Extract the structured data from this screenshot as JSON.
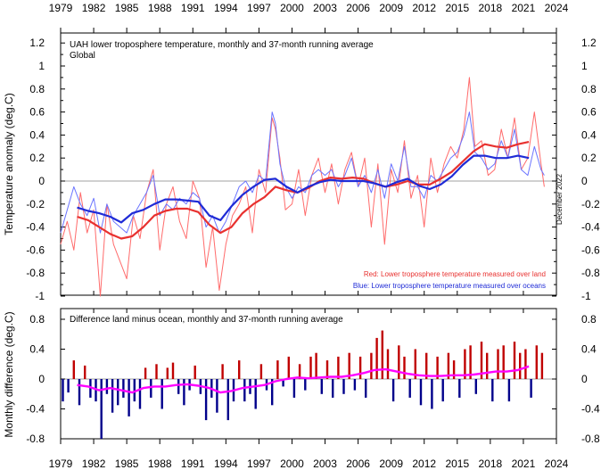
{
  "colors": {
    "land": "#e8312f",
    "ocean": "#1f2bd6",
    "land_raw": "#ff6b6b",
    "ocean_raw": "#6b74ff",
    "diff_pos": "#c00000",
    "diff_neg": "#00008b",
    "diff_avg": "#ff00ff",
    "zero_line": "#808080"
  },
  "chart_data": [
    {
      "type": "line",
      "title": "UAH lower troposphere temperature, monthly and 37-month running average",
      "subtitle": "Global",
      "ylabel": "Temperature anomaly (deg.C)",
      "xlabel": "",
      "xlim": [
        1979,
        2024
      ],
      "ylim": [
        -1.0,
        1.3
      ],
      "x_ticks": [
        "1979",
        "1982",
        "1985",
        "1988",
        "1991",
        "1994",
        "1997",
        "2000",
        "2003",
        "2006",
        "2009",
        "2012",
        "2015",
        "2018",
        "2021",
        "2024"
      ],
      "y_ticks": [
        "1.2",
        "1",
        "0.8",
        "0.6",
        "0.4",
        "0.2",
        "0",
        "-0.2",
        "-0.4",
        "-0.6",
        "-0.8",
        "-1"
      ],
      "right_y_ticks": [
        "1.2",
        "1",
        "0.8",
        "0.6",
        "0.4",
        "0.2",
        "0",
        "-0.2",
        "-0.4",
        "-0.6",
        "-0.8",
        "-1"
      ],
      "annotation": "December 2022",
      "legend": [
        {
          "label": "Red: Lower troposphere temperature measured over land",
          "color": "#e8312f"
        },
        {
          "label": "Blue: Lower troposphere temperature measured over oceans",
          "color": "#1f2bd6"
        }
      ],
      "series": [
        {
          "name": "Land 37-month running average",
          "x": [
            1980.5,
            1981.5,
            1982.5,
            1983.5,
            1984.5,
            1985.5,
            1986.5,
            1987.5,
            1988.5,
            1989.5,
            1990.5,
            1991.5,
            1992.5,
            1993.5,
            1994.5,
            1995.5,
            1996.5,
            1997.5,
            1998.5,
            1999.5,
            2000.5,
            2001.5,
            2002.5,
            2003.5,
            2004.5,
            2005.5,
            2006.5,
            2007.5,
            2008.5,
            2009.5,
            2010.5,
            2011.5,
            2012.5,
            2013.5,
            2014.5,
            2015.5,
            2016.5,
            2017.5,
            2018.5,
            2019.5,
            2020.5,
            2021.5
          ],
          "values": [
            -0.31,
            -0.34,
            -0.4,
            -0.46,
            -0.5,
            -0.48,
            -0.4,
            -0.3,
            -0.26,
            -0.24,
            -0.24,
            -0.27,
            -0.38,
            -0.45,
            -0.4,
            -0.28,
            -0.2,
            -0.14,
            -0.05,
            -0.08,
            -0.1,
            -0.06,
            0.0,
            0.03,
            0.02,
            0.03,
            0.02,
            -0.02,
            -0.05,
            -0.03,
            0.0,
            -0.03,
            -0.03,
            0.02,
            0.08,
            0.17,
            0.26,
            0.32,
            0.3,
            0.29,
            0.32,
            0.34
          ]
        },
        {
          "name": "Ocean 37-month running average",
          "x": [
            1980.5,
            1981.5,
            1982.5,
            1983.5,
            1984.5,
            1985.5,
            1986.5,
            1987.5,
            1988.5,
            1989.5,
            1990.5,
            1991.5,
            1992.5,
            1993.5,
            1994.5,
            1995.5,
            1996.5,
            1997.5,
            1998.5,
            1999.5,
            2000.5,
            2001.5,
            2002.5,
            2003.5,
            2004.5,
            2005.5,
            2006.5,
            2007.5,
            2008.5,
            2009.5,
            2010.5,
            2011.5,
            2012.5,
            2013.5,
            2014.5,
            2015.5,
            2016.5,
            2017.5,
            2018.5,
            2019.5,
            2020.5,
            2021.5
          ],
          "values": [
            -0.23,
            -0.26,
            -0.28,
            -0.31,
            -0.36,
            -0.28,
            -0.25,
            -0.2,
            -0.16,
            -0.16,
            -0.17,
            -0.18,
            -0.3,
            -0.34,
            -0.22,
            -0.12,
            -0.05,
            0.01,
            0.02,
            -0.05,
            -0.1,
            -0.05,
            -0.01,
            0.01,
            0.0,
            0.0,
            0.0,
            -0.02,
            -0.05,
            -0.01,
            0.02,
            -0.04,
            -0.07,
            -0.03,
            0.04,
            0.14,
            0.22,
            0.22,
            0.2,
            0.2,
            0.22,
            0.2
          ]
        },
        {
          "name": "Land monthly",
          "x": [
            1979.0,
            1979.6,
            1980.2,
            1980.8,
            1981.4,
            1982.0,
            1982.6,
            1983.2,
            1983.8,
            1984.4,
            1985.0,
            1985.6,
            1986.2,
            1986.8,
            1987.4,
            1988.0,
            1988.6,
            1989.2,
            1989.8,
            1990.4,
            1991.0,
            1991.6,
            1992.2,
            1992.8,
            1993.4,
            1994.0,
            1994.6,
            1995.2,
            1995.8,
            1996.4,
            1997.0,
            1997.6,
            1998.2,
            1998.5,
            1998.9,
            1999.4,
            2000.0,
            2000.6,
            2001.2,
            2001.8,
            2002.4,
            2003.0,
            2003.6,
            2004.2,
            2004.8,
            2005.4,
            2006.0,
            2006.6,
            2007.2,
            2007.8,
            2008.4,
            2009.0,
            2009.6,
            2010.2,
            2010.8,
            2011.4,
            2012.0,
            2012.6,
            2013.2,
            2013.8,
            2014.4,
            2015.0,
            2015.6,
            2016.1,
            2016.6,
            2017.2,
            2017.8,
            2018.4,
            2019.0,
            2019.6,
            2020.2,
            2020.8,
            2021.4,
            2022.0,
            2022.6,
            2022.9
          ],
          "values": [
            -0.55,
            -0.35,
            -0.6,
            -0.1,
            -0.45,
            -0.25,
            -1.0,
            -0.2,
            -0.55,
            -0.7,
            -0.85,
            -0.3,
            -0.5,
            -0.1,
            0.1,
            -0.6,
            -0.2,
            -0.05,
            -0.35,
            -0.5,
            0.0,
            -0.15,
            -0.75,
            -0.4,
            -0.95,
            -0.55,
            -0.3,
            -0.2,
            -0.05,
            -0.45,
            0.1,
            -0.1,
            0.55,
            0.45,
            0.2,
            -0.25,
            -0.2,
            0.1,
            -0.3,
            0.05,
            0.2,
            -0.1,
            0.15,
            -0.2,
            0.1,
            0.25,
            -0.05,
            0.2,
            -0.4,
            0.15,
            -0.55,
            0.1,
            -0.1,
            0.35,
            -0.15,
            0.05,
            -0.4,
            0.2,
            -0.1,
            0.15,
            0.3,
            0.2,
            0.45,
            0.9,
            0.3,
            0.35,
            0.05,
            0.1,
            0.45,
            0.2,
            0.55,
            0.1,
            0.2,
            0.6,
            0.15,
            -0.05
          ]
        },
        {
          "name": "Ocean monthly",
          "x": [
            1979.0,
            1979.6,
            1980.2,
            1980.8,
            1981.4,
            1982.0,
            1982.6,
            1983.2,
            1983.8,
            1984.4,
            1985.0,
            1985.6,
            1986.2,
            1986.8,
            1987.4,
            1988.0,
            1988.6,
            1989.2,
            1989.8,
            1990.4,
            1991.0,
            1991.6,
            1992.2,
            1992.8,
            1993.4,
            1994.0,
            1994.6,
            1995.2,
            1995.8,
            1996.4,
            1997.0,
            1997.6,
            1998.2,
            1998.5,
            1998.9,
            1999.4,
            2000.0,
            2000.6,
            2001.2,
            2001.8,
            2002.4,
            2003.0,
            2003.6,
            2004.2,
            2004.8,
            2005.4,
            2006.0,
            2006.6,
            2007.2,
            2007.8,
            2008.4,
            2009.0,
            2009.6,
            2010.2,
            2010.8,
            2011.4,
            2012.0,
            2012.6,
            2013.2,
            2013.8,
            2014.4,
            2015.0,
            2015.6,
            2016.1,
            2016.6,
            2017.2,
            2017.8,
            2018.4,
            2019.0,
            2019.6,
            2020.2,
            2020.8,
            2021.4,
            2022.0,
            2022.6,
            2022.9
          ],
          "values": [
            -0.45,
            -0.25,
            -0.05,
            -0.2,
            -0.3,
            -0.15,
            -0.45,
            -0.2,
            -0.35,
            -0.4,
            -0.45,
            -0.3,
            -0.2,
            -0.1,
            0.05,
            -0.3,
            -0.2,
            -0.25,
            -0.15,
            -0.2,
            -0.1,
            -0.15,
            -0.4,
            -0.3,
            -0.45,
            -0.35,
            -0.2,
            -0.05,
            0.0,
            -0.1,
            0.05,
            0.0,
            0.6,
            0.5,
            0.15,
            -0.05,
            -0.15,
            -0.05,
            -0.1,
            0.05,
            0.1,
            0.05,
            0.1,
            -0.05,
            0.05,
            0.2,
            -0.05,
            0.05,
            -0.1,
            0.1,
            -0.15,
            0.15,
            0.0,
            0.3,
            -0.05,
            -0.05,
            -0.15,
            0.05,
            0.0,
            0.1,
            0.2,
            0.25,
            0.4,
            0.6,
            0.25,
            0.2,
            0.1,
            0.15,
            0.35,
            0.2,
            0.45,
            0.1,
            0.05,
            0.3,
            0.1,
            0.05
          ]
        }
      ]
    },
    {
      "type": "bar",
      "title": "Difference land minus ocean, monthly and 37-month running average",
      "ylabel": "Monthly difference (deg.C)",
      "xlabel": "",
      "xlim": [
        1979,
        2024
      ],
      "ylim": [
        -0.85,
        0.85
      ],
      "x_ticks": [
        "1979",
        "1982",
        "1985",
        "1988",
        "1991",
        "1994",
        "1997",
        "2000",
        "2003",
        "2006",
        "2009",
        "2012",
        "2015",
        "2018",
        "2021",
        "2024"
      ],
      "y_ticks": [
        "0.8",
        "0.4",
        "0",
        "-0.4",
        "-0.8"
      ],
      "right_y_ticks": [
        "0.8",
        "0.4",
        "0",
        "-0.4",
        "-0.8"
      ],
      "series": [
        {
          "name": "Monthly difference",
          "x": [
            1979.2,
            1979.7,
            1980.2,
            1980.7,
            1981.2,
            1981.7,
            1982.2,
            1982.7,
            1983.2,
            1983.7,
            1984.2,
            1984.7,
            1985.2,
            1985.7,
            1986.2,
            1986.7,
            1987.2,
            1987.7,
            1988.2,
            1988.7,
            1989.2,
            1989.7,
            1990.2,
            1990.7,
            1991.2,
            1991.7,
            1992.2,
            1992.7,
            1993.2,
            1993.7,
            1994.2,
            1994.7,
            1995.2,
            1995.7,
            1996.2,
            1996.7,
            1997.2,
            1997.7,
            1998.2,
            1998.7,
            1999.2,
            1999.7,
            2000.2,
            2000.7,
            2001.2,
            2001.7,
            2002.2,
            2002.7,
            2003.2,
            2003.7,
            2004.2,
            2004.7,
            2005.2,
            2005.7,
            2006.2,
            2006.7,
            2007.2,
            2007.7,
            2008.2,
            2008.7,
            2009.2,
            2009.7,
            2010.2,
            2010.7,
            2011.2,
            2011.7,
            2012.2,
            2012.7,
            2013.2,
            2013.7,
            2014.2,
            2014.7,
            2015.2,
            2015.7,
            2016.2,
            2016.7,
            2017.2,
            2017.7,
            2018.2,
            2018.7,
            2019.2,
            2019.7,
            2020.2,
            2020.7,
            2021.2,
            2021.7,
            2022.2,
            2022.7
          ],
          "values": [
            -0.3,
            -0.18,
            0.25,
            -0.35,
            0.18,
            -0.25,
            -0.3,
            -0.8,
            -0.2,
            -0.45,
            -0.35,
            -0.25,
            -0.5,
            -0.3,
            -0.4,
            0.15,
            -0.25,
            0.2,
            -0.4,
            0.15,
            0.22,
            -0.2,
            -0.35,
            -0.15,
            0.18,
            -0.2,
            -0.55,
            -0.25,
            -0.45,
            0.2,
            -0.55,
            -0.3,
            0.25,
            -0.3,
            -0.2,
            -0.4,
            0.2,
            -0.15,
            -0.35,
            0.25,
            -0.1,
            0.3,
            -0.25,
            0.2,
            -0.15,
            0.3,
            0.35,
            -0.2,
            0.25,
            -0.25,
            0.3,
            -0.2,
            0.35,
            -0.15,
            0.3,
            -0.25,
            0.35,
            0.55,
            0.65,
            0.4,
            -0.3,
            0.45,
            0.3,
            -0.25,
            0.4,
            -0.35,
            0.35,
            -0.4,
            0.3,
            -0.3,
            0.35,
            0.25,
            -0.25,
            0.4,
            0.45,
            -0.2,
            0.5,
            0.35,
            -0.3,
            0.4,
            0.45,
            -0.3,
            0.5,
            0.35,
            0.4,
            -0.25,
            0.45,
            0.35
          ]
        },
        {
          "name": "37-month running average",
          "x": [
            1980.5,
            1981.5,
            1982.5,
            1983.5,
            1984.5,
            1985.5,
            1986.5,
            1987.5,
            1988.5,
            1989.5,
            1990.5,
            1991.5,
            1992.5,
            1993.5,
            1994.5,
            1995.5,
            1996.5,
            1997.5,
            1998.5,
            1999.5,
            2000.5,
            2001.5,
            2002.5,
            2003.5,
            2004.5,
            2005.5,
            2006.5,
            2007.5,
            2008.5,
            2009.5,
            2010.5,
            2011.5,
            2012.5,
            2013.5,
            2014.5,
            2015.5,
            2016.5,
            2017.5,
            2018.5,
            2019.5,
            2020.5,
            2021.5
          ],
          "values": [
            -0.08,
            -0.1,
            -0.15,
            -0.12,
            -0.15,
            -0.18,
            -0.12,
            -0.1,
            -0.1,
            -0.08,
            -0.07,
            -0.09,
            -0.12,
            -0.18,
            -0.16,
            -0.12,
            -0.1,
            -0.08,
            -0.03,
            0.0,
            0.02,
            0.01,
            0.02,
            0.03,
            0.03,
            0.05,
            0.08,
            0.12,
            0.13,
            0.1,
            0.07,
            0.05,
            0.04,
            0.04,
            0.05,
            0.05,
            0.06,
            0.08,
            0.1,
            0.1,
            0.12,
            0.17
          ]
        }
      ]
    }
  ]
}
